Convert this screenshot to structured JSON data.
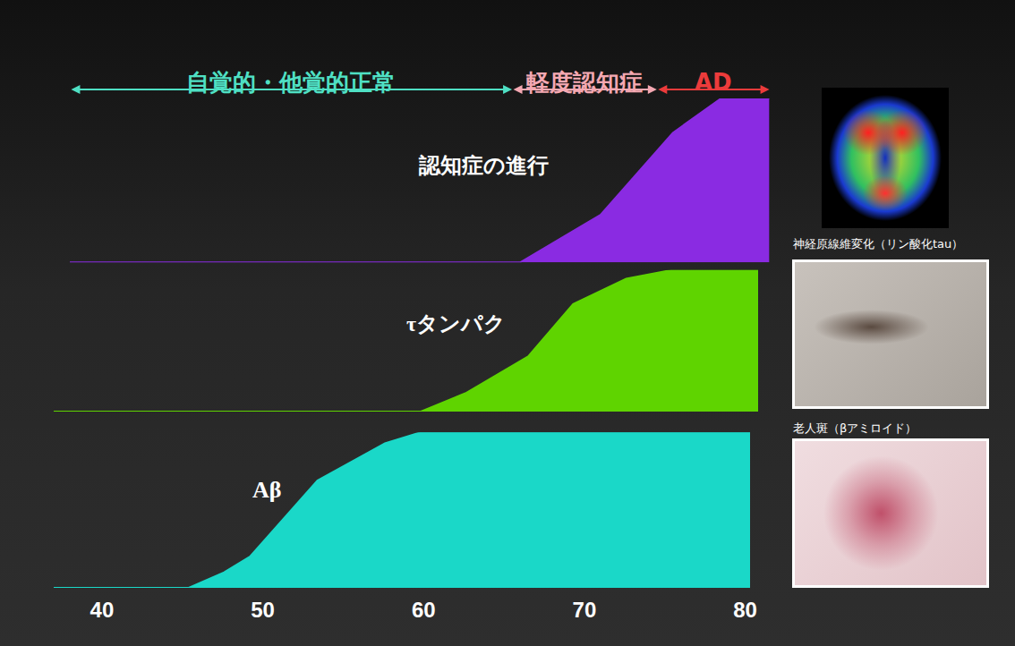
{
  "chart_data": [
    {
      "type": "area",
      "label": "認知症の進行",
      "color": "#8a2be2",
      "x": [
        38,
        66,
        71,
        75.5,
        78.5,
        81.5
      ],
      "values": [
        0,
        0,
        29,
        79,
        100,
        100
      ],
      "xlim": [
        37,
        81.5
      ],
      "ylim": [
        0,
        100
      ],
      "tick_labels": false,
      "grid": false
    },
    {
      "type": "area",
      "label": "τタンパク",
      "color": "#5fd400",
      "x": [
        37,
        59.8,
        62.6,
        66.5,
        69.3,
        72.6,
        75.4,
        80.8
      ],
      "values": [
        0,
        0,
        13,
        39,
        76,
        94,
        100,
        100
      ],
      "xlim": [
        37,
        81.5
      ],
      "ylim": [
        0,
        100
      ],
      "tick_labels": false,
      "grid": false
    },
    {
      "type": "area",
      "label": "Aβ",
      "color": "#1ad8c8",
      "x": [
        37,
        45.4,
        47.6,
        49.2,
        53.4,
        55.3,
        57.6,
        59.8,
        80.3
      ],
      "values": [
        0,
        0,
        10,
        20,
        69,
        80,
        93,
        100,
        100
      ],
      "xlim": [
        37,
        81.5
      ],
      "ylim": [
        0,
        100
      ],
      "xticks": [
        40,
        50,
        60,
        70,
        80
      ],
      "tick_labels": "x",
      "grid": false
    }
  ],
  "stages": [
    {
      "label": "自覚的・他覚的正常",
      "from": 38,
      "to": 65.5,
      "color": "#4fe0c4"
    },
    {
      "label": "軽度認知症",
      "from": 65.5,
      "to": 74.5,
      "color": "#f4a8b2"
    },
    {
      "label": "AD",
      "from": 74.5,
      "to": 81.5,
      "color": "#ec3b3b"
    }
  ],
  "images": [
    {
      "caption": "神経原線維変化（リン酸化tau）"
    },
    {
      "caption": "老人斑（βアミロイド）"
    }
  ]
}
